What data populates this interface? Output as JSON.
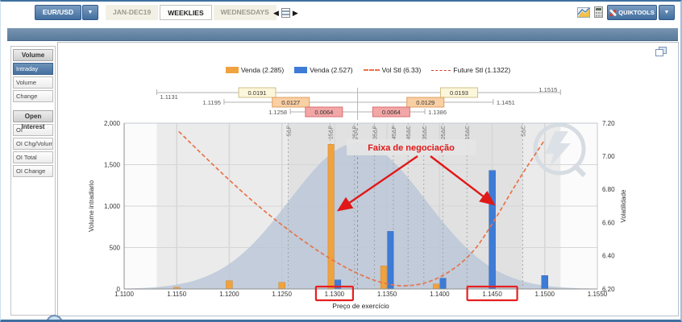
{
  "window": {
    "symbol": "EUR/USD",
    "tabs": [
      {
        "label": "JAN-DEC19",
        "active": false
      },
      {
        "label": "WEEKLIES",
        "active": true
      },
      {
        "label": "WEDNESDAYS",
        "active": false
      }
    ],
    "quiktools_label": "QUIKTOOLS",
    "accent_blue": "#416f9f"
  },
  "sidebar": {
    "sections": [
      {
        "header": "Volume",
        "items": [
          {
            "label": "Intraday",
            "selected": true
          },
          {
            "label": "Volume",
            "selected": false
          },
          {
            "label": "Change",
            "selected": false
          }
        ]
      },
      {
        "header": "Open Interest",
        "items": [
          {
            "label": "OI",
            "selected": false
          },
          {
            "label": "OI Chg/Volume",
            "selected": false
          },
          {
            "label": "OI Total",
            "selected": false
          },
          {
            "label": "OI Change",
            "selected": false
          }
        ]
      }
    ]
  },
  "legend": [
    {
      "label": "Venda (2.285)",
      "swatch": "rect",
      "color": "#f0a23e"
    },
    {
      "label": "Venda (2.527)",
      "swatch": "rect",
      "color": "#3d7bd6"
    },
    {
      "label": "Vol Stl (6.33)",
      "swatch": "dash",
      "color": "#e8734a"
    },
    {
      "label": "Future Stl (1.1322)",
      "swatch": "dash-fine",
      "color": "#d03b2f"
    }
  ],
  "annotation": {
    "text": "Faixa de negociação",
    "color": "#e01818",
    "highlight_strikes": [
      "1.1300",
      "1.1450"
    ]
  },
  "chart_data": {
    "type": "bar",
    "xlabel": "Preço de exercício",
    "ylabel_left": "Volume intradiario",
    "ylabel_right": "Volatilidade",
    "xlim": [
      1.11,
      1.155
    ],
    "ylim_left": [
      0,
      2000
    ],
    "ylim_right": [
      6.2,
      7.2
    ],
    "x_ticks": [
      {
        "v": 1.11,
        "label": "1.1100"
      },
      {
        "v": 1.115,
        "label": "1.1150"
      },
      {
        "v": 1.12,
        "label": "1.1200"
      },
      {
        "v": 1.125,
        "label": "1.1250"
      },
      {
        "v": 1.13,
        "label": "1.1300"
      },
      {
        "v": 1.135,
        "label": "1.1350"
      },
      {
        "v": 1.14,
        "label": "1.1400"
      },
      {
        "v": 1.145,
        "label": "1.1450"
      },
      {
        "v": 1.15,
        "label": "1.1500"
      },
      {
        "v": 1.155,
        "label": "1.1550"
      }
    ],
    "y_ticks_left": [
      {
        "v": 0,
        "label": "0"
      },
      {
        "v": 500,
        "label": "500"
      },
      {
        "v": 1000,
        "label": "1,000"
      },
      {
        "v": 1500,
        "label": "1,500"
      },
      {
        "v": 2000,
        "label": "2,000"
      }
    ],
    "y_ticks_right": [
      {
        "v": 6.2,
        "label": "6.20"
      },
      {
        "v": 6.4,
        "label": "6.40"
      },
      {
        "v": 6.6,
        "label": "6.60"
      },
      {
        "v": 6.8,
        "label": "6.80"
      },
      {
        "v": 7.0,
        "label": "7.00"
      },
      {
        "v": 7.2,
        "label": "7.20"
      }
    ],
    "series": [
      {
        "name": "Venda (2.285)",
        "type": "bar",
        "color": "#f0a23e",
        "points": [
          [
            1.115,
            20
          ],
          [
            1.12,
            100
          ],
          [
            1.125,
            80
          ],
          [
            1.13,
            1745
          ],
          [
            1.135,
            280
          ],
          [
            1.14,
            60
          ]
        ]
      },
      {
        "name": "Venda (2.527)",
        "type": "bar",
        "color": "#3d7bd6",
        "points": [
          [
            1.13,
            110
          ],
          [
            1.135,
            695
          ],
          [
            1.14,
            130
          ],
          [
            1.145,
            1430
          ],
          [
            1.15,
            162
          ]
        ]
      },
      {
        "name": "Vol Stl (6.33)",
        "type": "dashed-line",
        "axis": "right",
        "color": "#e8734a",
        "points": [
          [
            1.1152,
            7.15
          ],
          [
            1.12,
            6.85
          ],
          [
            1.125,
            6.58
          ],
          [
            1.13,
            6.36
          ],
          [
            1.134,
            6.24
          ],
          [
            1.137,
            6.21
          ],
          [
            1.14,
            6.26
          ],
          [
            1.143,
            6.4
          ],
          [
            1.145,
            6.59
          ],
          [
            1.1475,
            6.86
          ],
          [
            1.15,
            7.1
          ]
        ]
      },
      {
        "name": "Future Stl (1.1322)",
        "type": "vline",
        "color": "#d04040",
        "x": 1.1322
      }
    ],
    "distribution": {
      "center": 1.1322,
      "sigma": 0.0065,
      "peak": 1760,
      "color": "#b5c3d6"
    },
    "bands": {
      "outer": [
        1.1131,
        1.1515
      ],
      "inner": [
        1.1256,
        1.1479
      ]
    },
    "delta_lines": [
      {
        "label": "5ΔP",
        "strike": 1.1256
      },
      {
        "label": "15ΔP",
        "strike": 1.1296
      },
      {
        "label": "25ΔP",
        "strike": 1.1319
      },
      {
        "label": "35ΔP",
        "strike": 1.1338
      },
      {
        "label": "45ΔP",
        "strike": 1.1356
      },
      {
        "label": "45ΔC",
        "strike": 1.137
      },
      {
        "label": "35ΔC",
        "strike": 1.1385
      },
      {
        "label": "25ΔC",
        "strike": 1.1403
      },
      {
        "label": "15ΔC",
        "strike": 1.1426
      },
      {
        "label": "5ΔC",
        "strike": 1.1479
      }
    ],
    "center_value": 1.1322,
    "range_brackets": [
      {
        "left_label": "1.1131",
        "right_label": "1.1515",
        "left": 1.1131,
        "right": 1.1515,
        "left_box": "0.0191",
        "right_box": "0.0193",
        "style": "yellow",
        "labels": "inside"
      },
      {
        "left_label": "1.1195",
        "right_label": "1.1451",
        "left": 1.1195,
        "right": 1.1451,
        "left_box": "0.0127",
        "right_box": "0.0129",
        "style": "orange",
        "labels": "outside"
      },
      {
        "left_label": "1.1258",
        "right_label": "1.1386",
        "left": 1.1258,
        "right": 1.1386,
        "left_box": "0.0064",
        "right_box": "0.0064",
        "style": "pink",
        "labels": "outside"
      }
    ]
  }
}
